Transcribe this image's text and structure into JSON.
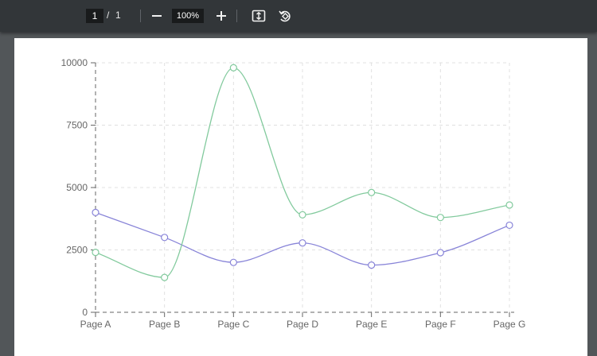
{
  "toolbar": {
    "current_page": "1",
    "page_separator": "/",
    "total_pages": "1",
    "zoom": "100%",
    "icons": [
      "zoom-out-icon",
      "zoom-in-icon",
      "fit-to-page-icon",
      "rotate-icon"
    ]
  },
  "colors": {
    "toolbar_bg": "#323639",
    "viewer_bg": "#525659",
    "series_1": "#8884d8",
    "series_2": "#82ca9d"
  },
  "chart_data": {
    "type": "line",
    "title": "",
    "xlabel": "",
    "ylabel": "",
    "categories": [
      "Page A",
      "Page B",
      "Page C",
      "Page D",
      "Page E",
      "Page F",
      "Page G"
    ],
    "ylim": [
      0,
      10000
    ],
    "yticks": [
      0,
      2500,
      5000,
      7500,
      10000
    ],
    "grid": true,
    "series": [
      {
        "values": [
          4000,
          3000,
          2000,
          2780,
          1890,
          2390,
          3490
        ]
      },
      {
        "values": [
          2400,
          1398,
          9800,
          3908,
          4800,
          3800,
          4300
        ]
      }
    ]
  }
}
